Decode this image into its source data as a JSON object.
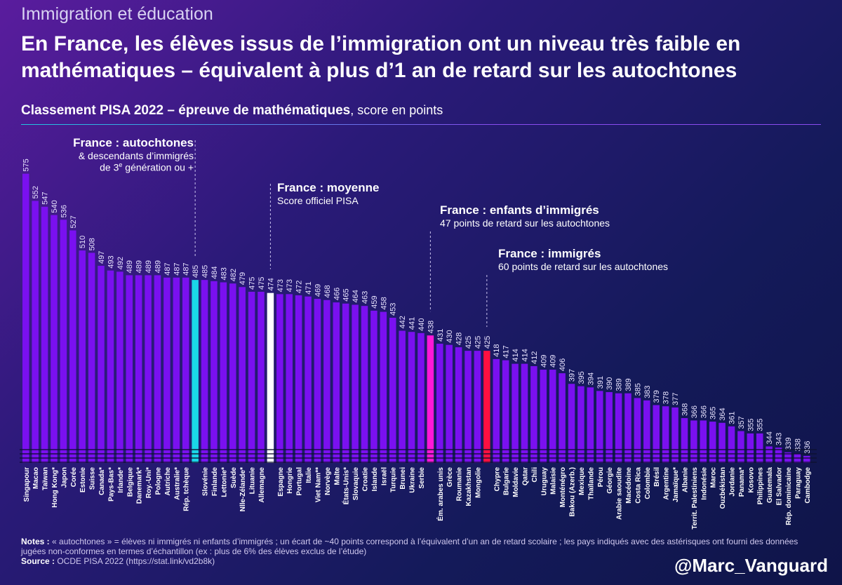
{
  "header": {
    "kicker": "Immigration et éducation",
    "title": "En France, les élèves issus de l’immigration ont un niveau très faible en mathématiques – équivalent à plus d’1 an de retard sur les autochtones",
    "subtitle_bold": "Classement PISA 2022 – épreuve de mathématiques",
    "subtitle_rest": ", score en points"
  },
  "annotations": {
    "autochtones": {
      "title": "France : autochtones",
      "line1": "& descendants d’immigrés",
      "line2_pre": "de 3",
      "line2_sup": "e",
      "line2_post": " génération ou +"
    },
    "moyenne": {
      "title": "France : moyenne",
      "sub": "Score officiel PISA"
    },
    "enfants": {
      "title": "France : enfants d’immigrés",
      "sub": "47 points de retard sur les autochtones"
    },
    "immigres": {
      "title": "France : immigrés",
      "sub": "60 points de retard sur les autochtones"
    }
  },
  "colors": {
    "bar": "#7a10f0",
    "autochtones": "#1ad8e8",
    "moyenne": "#ffffff",
    "enfants": "#ff18d8",
    "immigres": "#ff1040"
  },
  "chart_data": {
    "type": "bar",
    "title": "Classement PISA 2022 – épreuve de mathématiques",
    "ylabel": "score en points",
    "ylim": [
      330,
      580
    ],
    "categories": [
      "Singapour",
      "Macao",
      "Taïwan",
      "Hong Kong*",
      "Japon",
      "Corée",
      "Estonie",
      "Suisse",
      "Canada*",
      "Pays-Bas*",
      "Irlande*",
      "Belgique",
      "Danemark*",
      "Roy.-Uni*",
      "Pologne",
      "Autriche",
      "Australie*",
      "Rép. tchèque",
      "France : autochtones",
      "Slovénie",
      "Finlande",
      "Lettonie*",
      "Suède",
      "Nlle-Zélande*",
      "Lituanie",
      "Allemagne",
      "France : moyenne",
      "Espagne",
      "Hongrie",
      "Portugal",
      "Italie",
      "Viet Nam**",
      "Norvège",
      "Malte",
      "États-Unis*",
      "Slovaquie",
      "Croatie",
      "Islande",
      "Israël",
      "Turquie",
      "Brunei",
      "Ukraine",
      "Serbie",
      "France : enfants d’immigrés",
      "Ém. arabes unis",
      "Grèce",
      "Roumanie",
      "Kazakhstan",
      "Mongolie",
      "France : immigrés",
      "Chypre",
      "Bulgarie",
      "Moldavie",
      "Qatar",
      "Chili",
      "Uruguay",
      "Malaisie",
      "Monténégro",
      "Bakou (Azerb.)",
      "Mexique",
      "Thaïlande",
      "Pérou",
      "Géorgie",
      "Arabie saoudite",
      "Macédoine",
      "Costa Rica",
      "Colombie",
      "Brésil",
      "Argentine",
      "Jamaïque*",
      "Albanie",
      "Territ. Palestiniens",
      "Indonésie",
      "Maroc",
      "Ouzbékistan",
      "Jordanie",
      "Panama*",
      "Kosovo",
      "Philippines",
      "Guatemala",
      "El Salvador",
      "Rép. dominicaine",
      "Paraguay",
      "Cambodge"
    ],
    "values": [
      575,
      552,
      547,
      540,
      536,
      527,
      510,
      508,
      497,
      493,
      492,
      489,
      489,
      489,
      489,
      487,
      487,
      487,
      485,
      485,
      484,
      483,
      482,
      479,
      475,
      475,
      474,
      473,
      473,
      472,
      471,
      469,
      468,
      466,
      465,
      464,
      463,
      459,
      458,
      453,
      442,
      441,
      440,
      438,
      431,
      430,
      428,
      425,
      425,
      425,
      418,
      417,
      414,
      414,
      412,
      409,
      409,
      406,
      397,
      395,
      394,
      391,
      390,
      389,
      389,
      385,
      383,
      379,
      378,
      377,
      368,
      366,
      366,
      365,
      364,
      361,
      357,
      355,
      355,
      344,
      343,
      339,
      338,
      336
    ],
    "display_labels": [
      "Singapour",
      "Macao",
      "Taïwan",
      "Hong Kong*",
      "Japon",
      "Corée",
      "Estonie",
      "Suisse",
      "Canada*",
      "Pays-Bas*",
      "Irlande*",
      "Belgique",
      "Danemark*",
      "Roy.-Uni*",
      "Pologne",
      "Autriche",
      "Australie*",
      "Rép. tchèque",
      "",
      "Slovénie",
      "Finlande",
      "Lettonie*",
      "Suède",
      "Nlle-Zélande*",
      "Lituanie",
      "Allemagne",
      "",
      "Espagne",
      "Hongrie",
      "Portugal",
      "Italie",
      "Viet Nam**",
      "Norvège",
      "Malte",
      "États-Unis*",
      "Slovaquie",
      "Croatie",
      "Islande",
      "Israël",
      "Turquie",
      "Brunei",
      "Ukraine",
      "Serbie",
      "",
      "Ém. arabes unis",
      "Grèce",
      "Roumanie",
      "Kazakhstan",
      "Mongolie",
      "",
      "Chypre",
      "Bulgarie",
      "Moldavie",
      "Qatar",
      "Chili",
      "Uruguay",
      "Malaisie",
      "Monténégro",
      "Bakou (Azerb.)",
      "Mexique",
      "Thaïlande",
      "Pérou",
      "Géorgie",
      "Arabie saoudite",
      "Macédoine",
      "Costa Rica",
      "Colombie",
      "Brésil",
      "Argentine",
      "Jamaïque*",
      "Albanie",
      "Territ. Palestiniens",
      "Indonésie",
      "Maroc",
      "Ouzbékistan",
      "Jordanie",
      "Panama*",
      "Kosovo",
      "Philippines",
      "Guatemala",
      "El Salvador",
      "Rép. dominicaine",
      "Paraguay",
      "Cambodge"
    ],
    "highlight_index": {
      "autochtones": 18,
      "moyenne": 26,
      "enfants": 43,
      "immigres": 49
    }
  },
  "footer": {
    "notes_label": "Notes :",
    "notes_text": " « autochtones » = élèves ni immigrés ni enfants d’immigrés ; un écart de ~40 points correspond à l’équivalent d’un an de retard scolaire ; les pays indiqués avec des astérisques ont fourni des données jugées non-conformes en termes d’échantillon (ex : plus de 6% des élèves exclus de l’étude)",
    "source_label": "Source :",
    "source_text": " OCDE PISA 2022 (https://stat.link/vd2b8k)",
    "handle": "@Marc_Vanguard"
  }
}
